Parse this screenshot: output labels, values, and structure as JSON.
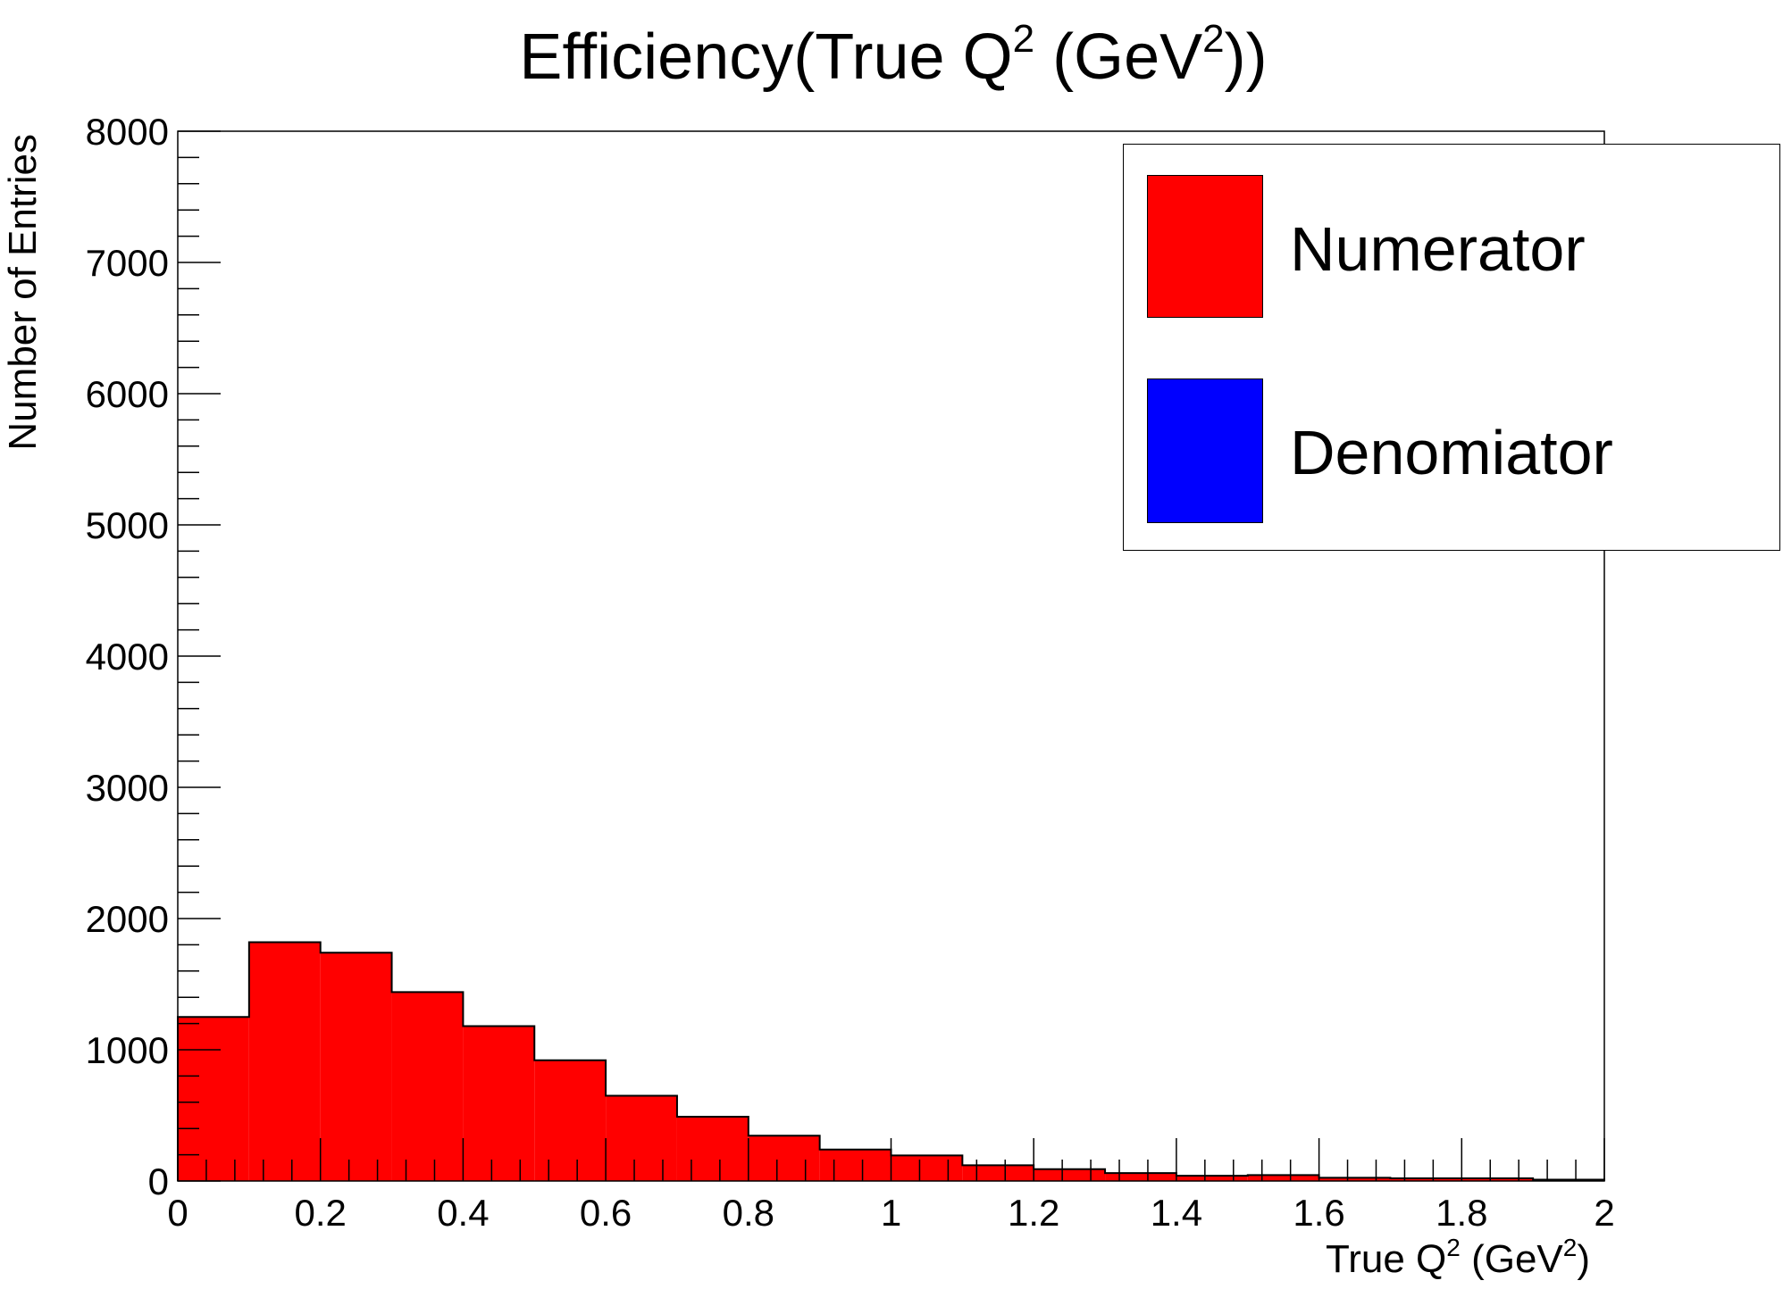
{
  "chart_data": {
    "type": "bar",
    "title": {
      "base": "Efficiency(True Q",
      "sup1": "2",
      "mid": " (GeV",
      "sup2": "2",
      "end": "))"
    },
    "xlabel": {
      "base": "True Q",
      "sup1": "2",
      "mid": " (GeV",
      "sup2": "2",
      "end": ")"
    },
    "ylabel": "Number of Entries",
    "xlim": [
      0,
      2
    ],
    "ylim": [
      0,
      8000
    ],
    "x_ticks": [
      "0",
      "0.2",
      "0.4",
      "0.6",
      "0.8",
      "1",
      "1.2",
      "1.4",
      "1.6",
      "1.8",
      "2"
    ],
    "y_ticks": [
      "0",
      "1000",
      "2000",
      "3000",
      "4000",
      "5000",
      "6000",
      "7000",
      "8000"
    ],
    "bin_edges": [
      0,
      0.1,
      0.2,
      0.3,
      0.4,
      0.5,
      0.6,
      0.7,
      0.8,
      0.9,
      1.0,
      1.1,
      1.2,
      1.3,
      1.4,
      1.5,
      1.6,
      1.7,
      1.8,
      1.9,
      2.0
    ],
    "series": [
      {
        "name": "Numerator",
        "color": "#ff0000",
        "values": [
          1250,
          1820,
          1740,
          1440,
          1180,
          920,
          650,
          490,
          345,
          240,
          195,
          120,
          90,
          60,
          40,
          45,
          25,
          20,
          20,
          10
        ]
      },
      {
        "name": "Denomiator",
        "color": "#0000ff",
        "values": []
      }
    ],
    "legend_position": "top-right",
    "grid": false
  }
}
